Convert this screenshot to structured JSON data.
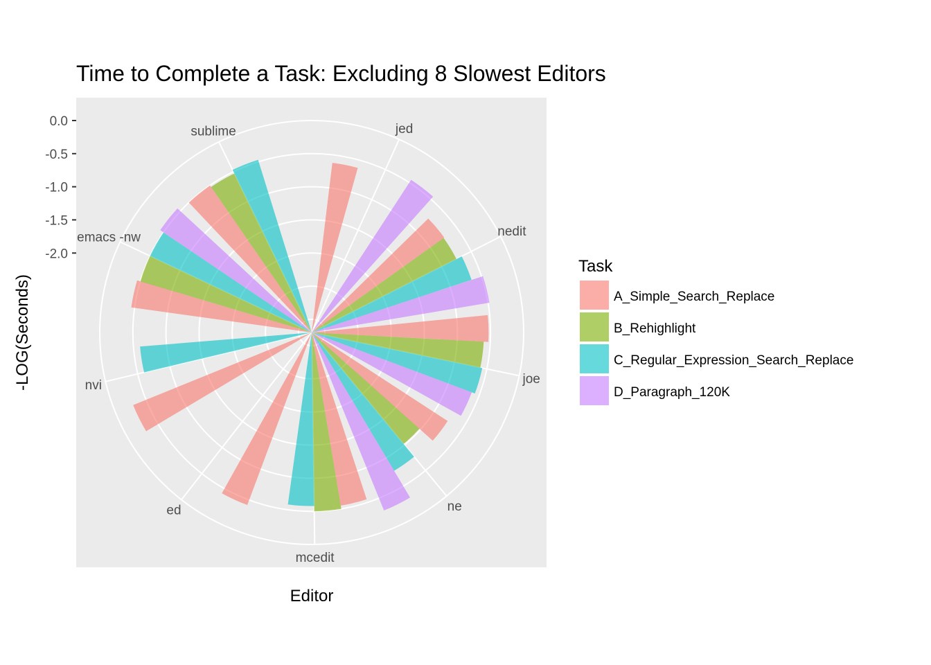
{
  "chart_data": {
    "type": "bar",
    "coord": "polar",
    "title": "Time to Complete a Task: Excluding 8 Slowest Editors",
    "xlabel": "Editor",
    "ylabel": "-LOG(Seconds)",
    "ylim": [
      -3.2,
      0.0
    ],
    "y_ticks": [
      "0.0",
      "-0.5",
      "-1.0",
      "-1.5",
      "-2.0"
    ],
    "y_tick_values": [
      0.0,
      -0.5,
      -1.0,
      -1.5,
      -2.0
    ],
    "categories": [
      "jed",
      "nedit",
      "joe",
      "ne",
      "mcedit",
      "ed",
      "nvi",
      "emacs -nw",
      "sublime"
    ],
    "legend_title": "Task",
    "series": [
      {
        "name": "A_Simple_Search_Replace",
        "color": "#F8766D",
        "values": [
          -0.62,
          -0.74,
          -0.53,
          -0.75,
          -0.55,
          -0.42,
          -0.29,
          -0.45,
          -0.5
        ]
      },
      {
        "name": "B_Rehighlight",
        "color": "#7CAE00",
        "values": [
          null,
          -0.75,
          -0.6,
          -1.02,
          -0.5,
          null,
          null,
          -0.5,
          -0.53
        ]
      },
      {
        "name": "C_Regular_Expression_Search_Replace",
        "color": "#00BFC4",
        "values": [
          null,
          -0.66,
          -0.57,
          -0.77,
          -0.58,
          null,
          -0.6,
          -0.5,
          -0.47
        ]
      },
      {
        "name": "D_Paragraph_120K",
        "color": "#C77CFF",
        "values": [
          -0.45,
          -0.48,
          -0.62,
          -0.3,
          null,
          null,
          null,
          -0.44,
          null
        ]
      }
    ],
    "grid": true,
    "legend_position": "right"
  }
}
